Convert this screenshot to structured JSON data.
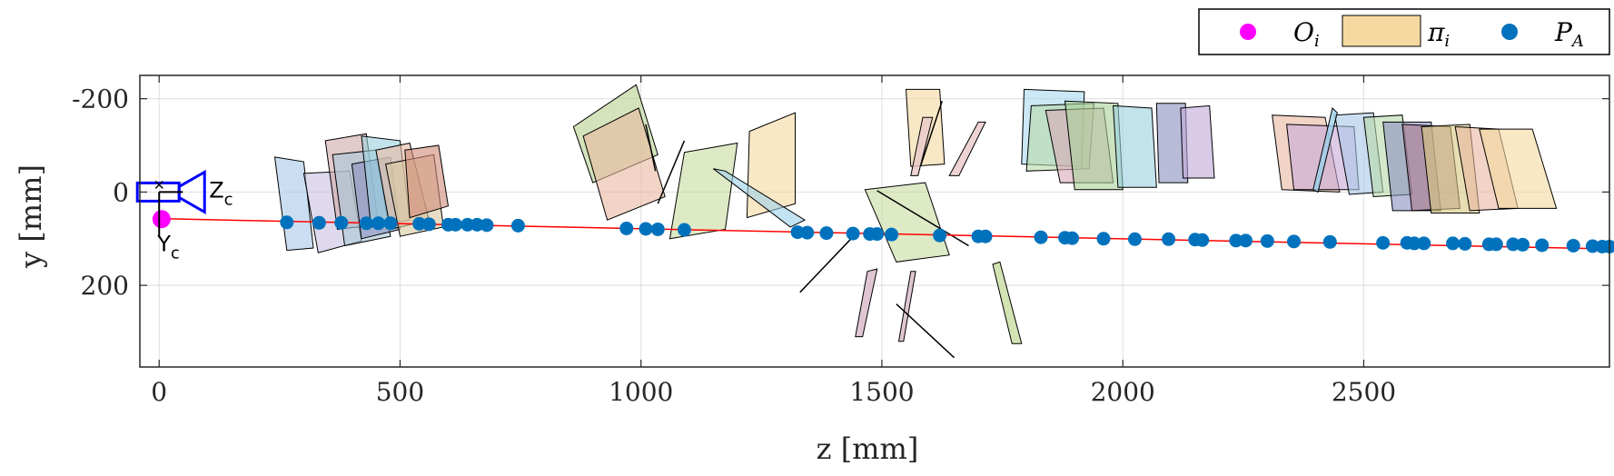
{
  "chart_data": {
    "type": "scatter",
    "xlabel": "z [mm]",
    "ylabel": "y [mm]",
    "xlim": [
      -40,
      3010
    ],
    "ylim": [
      -250,
      375
    ],
    "y_reversed": true,
    "x_ticks": [
      0,
      500,
      1000,
      1500,
      2000,
      2500
    ],
    "x_tick_labels": [
      "0",
      "500",
      "1000",
      "1500",
      "2000",
      "2500"
    ],
    "y_ticks": [
      -200,
      0,
      200
    ],
    "y_tick_labels": [
      "-200",
      "0",
      "200"
    ],
    "grid": true,
    "legend_position": "top-right, outside",
    "legend": [
      {
        "symbol": "O",
        "subscript": "i",
        "marker": "dot",
        "color": "#ff00ff"
      },
      {
        "symbol": "π",
        "subscript": "i",
        "marker": "patch",
        "color": "#f5d9a0"
      },
      {
        "symbol": "P",
        "subscript": "A",
        "marker": "dot",
        "color": "#0072bd"
      }
    ],
    "camera": {
      "label_z": "Z",
      "label_y": "Y",
      "label_sub": "c",
      "color": "#0000ff"
    },
    "origin_point": {
      "z": 5,
      "y": 58
    },
    "line_color": "#ff0000",
    "line_segment": {
      "z": [
        0,
        3010
      ],
      "y": [
        57,
        122
      ]
    },
    "points_PA": [
      [
        265,
        65
      ],
      [
        332,
        66
      ],
      [
        378,
        66
      ],
      [
        430,
        67
      ],
      [
        455,
        67
      ],
      [
        480,
        67
      ],
      [
        540,
        68
      ],
      [
        560,
        69
      ],
      [
        600,
        70
      ],
      [
        615,
        70
      ],
      [
        640,
        70
      ],
      [
        660,
        70
      ],
      [
        680,
        71
      ],
      [
        745,
        72
      ],
      [
        970,
        78
      ],
      [
        1010,
        79
      ],
      [
        1035,
        80
      ],
      [
        1090,
        81
      ],
      [
        1325,
        86
      ],
      [
        1345,
        87
      ],
      [
        1385,
        88
      ],
      [
        1440,
        89
      ],
      [
        1475,
        90
      ],
      [
        1490,
        90
      ],
      [
        1520,
        91
      ],
      [
        1620,
        93
      ],
      [
        1700,
        95
      ],
      [
        1715,
        95
      ],
      [
        1830,
        97
      ],
      [
        1880,
        98
      ],
      [
        1895,
        99
      ],
      [
        1960,
        100
      ],
      [
        2025,
        101
      ],
      [
        2095,
        101
      ],
      [
        2150,
        102
      ],
      [
        2165,
        103
      ],
      [
        2235,
        104
      ],
      [
        2255,
        104
      ],
      [
        2300,
        105
      ],
      [
        2355,
        106
      ],
      [
        2430,
        107
      ],
      [
        2540,
        109
      ],
      [
        2590,
        109
      ],
      [
        2605,
        110
      ],
      [
        2625,
        110
      ],
      [
        2685,
        110
      ],
      [
        2710,
        111
      ],
      [
        2760,
        112
      ],
      [
        2775,
        112
      ],
      [
        2810,
        112
      ],
      [
        2830,
        113
      ],
      [
        2870,
        114
      ],
      [
        2935,
        115
      ],
      [
        2975,
        116
      ],
      [
        2995,
        117
      ],
      [
        3010,
        117
      ]
    ],
    "planes_pi": [
      {
        "pts": [
          [
            240,
            -75
          ],
          [
            300,
            -65
          ],
          [
            320,
            120
          ],
          [
            265,
            125
          ]
        ],
        "color": "#a8c8e8"
      },
      {
        "pts": [
          [
            300,
            -40
          ],
          [
            395,
            -45
          ],
          [
            420,
            105
          ],
          [
            330,
            130
          ]
        ],
        "color": "#c8c0e0"
      },
      {
        "pts": [
          [
            345,
            -110
          ],
          [
            430,
            -125
          ],
          [
            455,
            70
          ],
          [
            370,
            80
          ]
        ],
        "color": "#d0a8a8"
      },
      {
        "pts": [
          [
            360,
            -80
          ],
          [
            450,
            -90
          ],
          [
            480,
            95
          ],
          [
            385,
            115
          ]
        ],
        "color": "#a8c8d8"
      },
      {
        "pts": [
          [
            400,
            -60
          ],
          [
            480,
            -75
          ],
          [
            500,
            80
          ],
          [
            420,
            100
          ]
        ],
        "color": "#8890c0"
      },
      {
        "pts": [
          [
            420,
            -120
          ],
          [
            500,
            -110
          ],
          [
            520,
            60
          ],
          [
            440,
            75
          ]
        ],
        "color": "#9ad0e0"
      },
      {
        "pts": [
          [
            450,
            -90
          ],
          [
            520,
            -105
          ],
          [
            560,
            60
          ],
          [
            480,
            80
          ]
        ],
        "color": "#e8b8a0"
      },
      {
        "pts": [
          [
            470,
            -60
          ],
          [
            570,
            -80
          ],
          [
            590,
            75
          ],
          [
            500,
            95
          ]
        ],
        "color": "#d8c8a0"
      },
      {
        "pts": [
          [
            510,
            -90
          ],
          [
            580,
            -100
          ],
          [
            600,
            30
          ],
          [
            520,
            55
          ]
        ],
        "color": "#d08878"
      },
      {
        "pts": [
          [
            860,
            -140
          ],
          [
            990,
            -230
          ],
          [
            1035,
            -80
          ],
          [
            900,
            -20
          ]
        ],
        "color": "#b8d090"
      },
      {
        "pts": [
          [
            880,
            -120
          ],
          [
            995,
            -180
          ],
          [
            1050,
            10
          ],
          [
            930,
            60
          ]
        ],
        "color": "#eab8a0"
      },
      {
        "pts": [
          [
            1090,
            -85
          ],
          [
            1200,
            -105
          ],
          [
            1175,
            80
          ],
          [
            1060,
            100
          ]
        ],
        "color": "#c8dca0"
      },
      {
        "pts": [
          [
            1225,
            -130
          ],
          [
            1320,
            -170
          ],
          [
            1320,
            25
          ],
          [
            1220,
            55
          ]
        ],
        "color": "#f5d9a0"
      },
      {
        "pts": [
          [
            1150,
            -50
          ],
          [
            1175,
            -45
          ],
          [
            1340,
            60
          ],
          [
            1310,
            75
          ]
        ],
        "color": "#9dd0ea"
      },
      {
        "pts": [
          [
            1465,
            -5
          ],
          [
            1590,
            -20
          ],
          [
            1640,
            135
          ],
          [
            1530,
            150
          ]
        ],
        "color": "#c8dca0"
      },
      {
        "pts": [
          [
            1550,
            -220
          ],
          [
            1620,
            -220
          ],
          [
            1630,
            -60
          ],
          [
            1560,
            -55
          ]
        ],
        "color": "#f5d9a0"
      },
      {
        "pts": [
          [
            1795,
            -220
          ],
          [
            1920,
            -215
          ],
          [
            1915,
            -55
          ],
          [
            1790,
            -60
          ]
        ],
        "color": "#a8d8f0"
      },
      {
        "pts": [
          [
            1810,
            -185
          ],
          [
            1940,
            -190
          ],
          [
            1930,
            -50
          ],
          [
            1800,
            -45
          ]
        ],
        "color": "#b8d8a8"
      },
      {
        "pts": [
          [
            1840,
            -175
          ],
          [
            1960,
            -180
          ],
          [
            1980,
            -20
          ],
          [
            1870,
            -20
          ]
        ],
        "color": "#d8a8b8"
      },
      {
        "pts": [
          [
            1880,
            -195
          ],
          [
            1990,
            -190
          ],
          [
            2000,
            -5
          ],
          [
            1900,
            -5
          ]
        ],
        "color": "#a8d098"
      },
      {
        "pts": [
          [
            1980,
            -185
          ],
          [
            2060,
            -180
          ],
          [
            2070,
            -10
          ],
          [
            1990,
            -10
          ]
        ],
        "color": "#9ad0e0"
      },
      {
        "pts": [
          [
            2070,
            -190
          ],
          [
            2130,
            -190
          ],
          [
            2135,
            -20
          ],
          [
            2075,
            -20
          ]
        ],
        "color": "#8890c0"
      },
      {
        "pts": [
          [
            2120,
            -180
          ],
          [
            2180,
            -185
          ],
          [
            2190,
            -30
          ],
          [
            2125,
            -30
          ]
        ],
        "color": "#c0a8d8"
      },
      {
        "pts": [
          [
            2310,
            -165
          ],
          [
            2420,
            -160
          ],
          [
            2450,
            0
          ],
          [
            2330,
            -5
          ]
        ],
        "color": "#e8b8a0"
      },
      {
        "pts": [
          [
            2340,
            -145
          ],
          [
            2480,
            -140
          ],
          [
            2490,
            -5
          ],
          [
            2355,
            -5
          ]
        ],
        "color": "#c8a8d8"
      },
      {
        "pts": [
          [
            2440,
            -165
          ],
          [
            2520,
            -170
          ],
          [
            2540,
            0
          ],
          [
            2470,
            5
          ]
        ],
        "color": "#a8c8e8"
      },
      {
        "pts": [
          [
            2500,
            -160
          ],
          [
            2580,
            -165
          ],
          [
            2600,
            5
          ],
          [
            2520,
            10
          ]
        ],
        "color": "#b8d8a8"
      },
      {
        "pts": [
          [
            2540,
            -150
          ],
          [
            2640,
            -150
          ],
          [
            2660,
            40
          ],
          [
            2560,
            40
          ]
        ],
        "color": "#8890c0"
      },
      {
        "pts": [
          [
            2580,
            -145
          ],
          [
            2680,
            -140
          ],
          [
            2700,
            35
          ],
          [
            2600,
            40
          ]
        ],
        "color": "#a87888"
      },
      {
        "pts": [
          [
            2620,
            -140
          ],
          [
            2720,
            -145
          ],
          [
            2740,
            45
          ],
          [
            2640,
            45
          ]
        ],
        "color": "#d8c880"
      },
      {
        "pts": [
          [
            2690,
            -140
          ],
          [
            2780,
            -135
          ],
          [
            2820,
            35
          ],
          [
            2720,
            40
          ]
        ],
        "color": "#e8b8a0"
      },
      {
        "pts": [
          [
            2740,
            -135
          ],
          [
            2850,
            -135
          ],
          [
            2900,
            35
          ],
          [
            2780,
            35
          ]
        ],
        "color": "#f5d9a0"
      }
    ],
    "edge_planes_pi": [
      {
        "pts": [
          [
            1585,
            -160
          ],
          [
            1605,
            -160
          ],
          [
            1575,
            -35
          ],
          [
            1560,
            -35
          ]
        ],
        "color": "#e8c8c8"
      },
      {
        "pts": [
          [
            1700,
            -150
          ],
          [
            1715,
            -150
          ],
          [
            1660,
            -35
          ],
          [
            1640,
            -35
          ]
        ],
        "color": "#e8c8c8"
      },
      {
        "pts": [
          [
            1470,
            170
          ],
          [
            1490,
            165
          ],
          [
            1460,
            310
          ],
          [
            1445,
            310
          ]
        ],
        "color": "#d8b8c8"
      },
      {
        "pts": [
          [
            1560,
            170
          ],
          [
            1570,
            170
          ],
          [
            1545,
            320
          ],
          [
            1535,
            320
          ]
        ],
        "color": "#d8b8c8"
      },
      {
        "pts": [
          [
            1730,
            155
          ],
          [
            1745,
            150
          ],
          [
            1790,
            325
          ],
          [
            1770,
            325
          ]
        ],
        "color": "#c8dca0"
      },
      {
        "pts": [
          [
            2435,
            -180
          ],
          [
            2445,
            -170
          ],
          [
            2405,
            0
          ],
          [
            2395,
            -5
          ]
        ],
        "color": "#9dd0ea"
      }
    ],
    "edge_lines": [
      [
        [
          1330,
          215
        ],
        [
          1450,
          85
        ]
      ],
      [
        [
          1490,
          -3
        ],
        [
          1680,
          115
        ]
      ],
      [
        [
          1530,
          240
        ],
        [
          1650,
          355
        ]
      ],
      [
        [
          1580,
          -55
        ],
        [
          1625,
          -195
        ]
      ],
      [
        [
          1010,
          -145
        ],
        [
          1030,
          -45
        ]
      ],
      [
        [
          1035,
          25
        ],
        [
          1090,
          -110
        ]
      ]
    ]
  }
}
